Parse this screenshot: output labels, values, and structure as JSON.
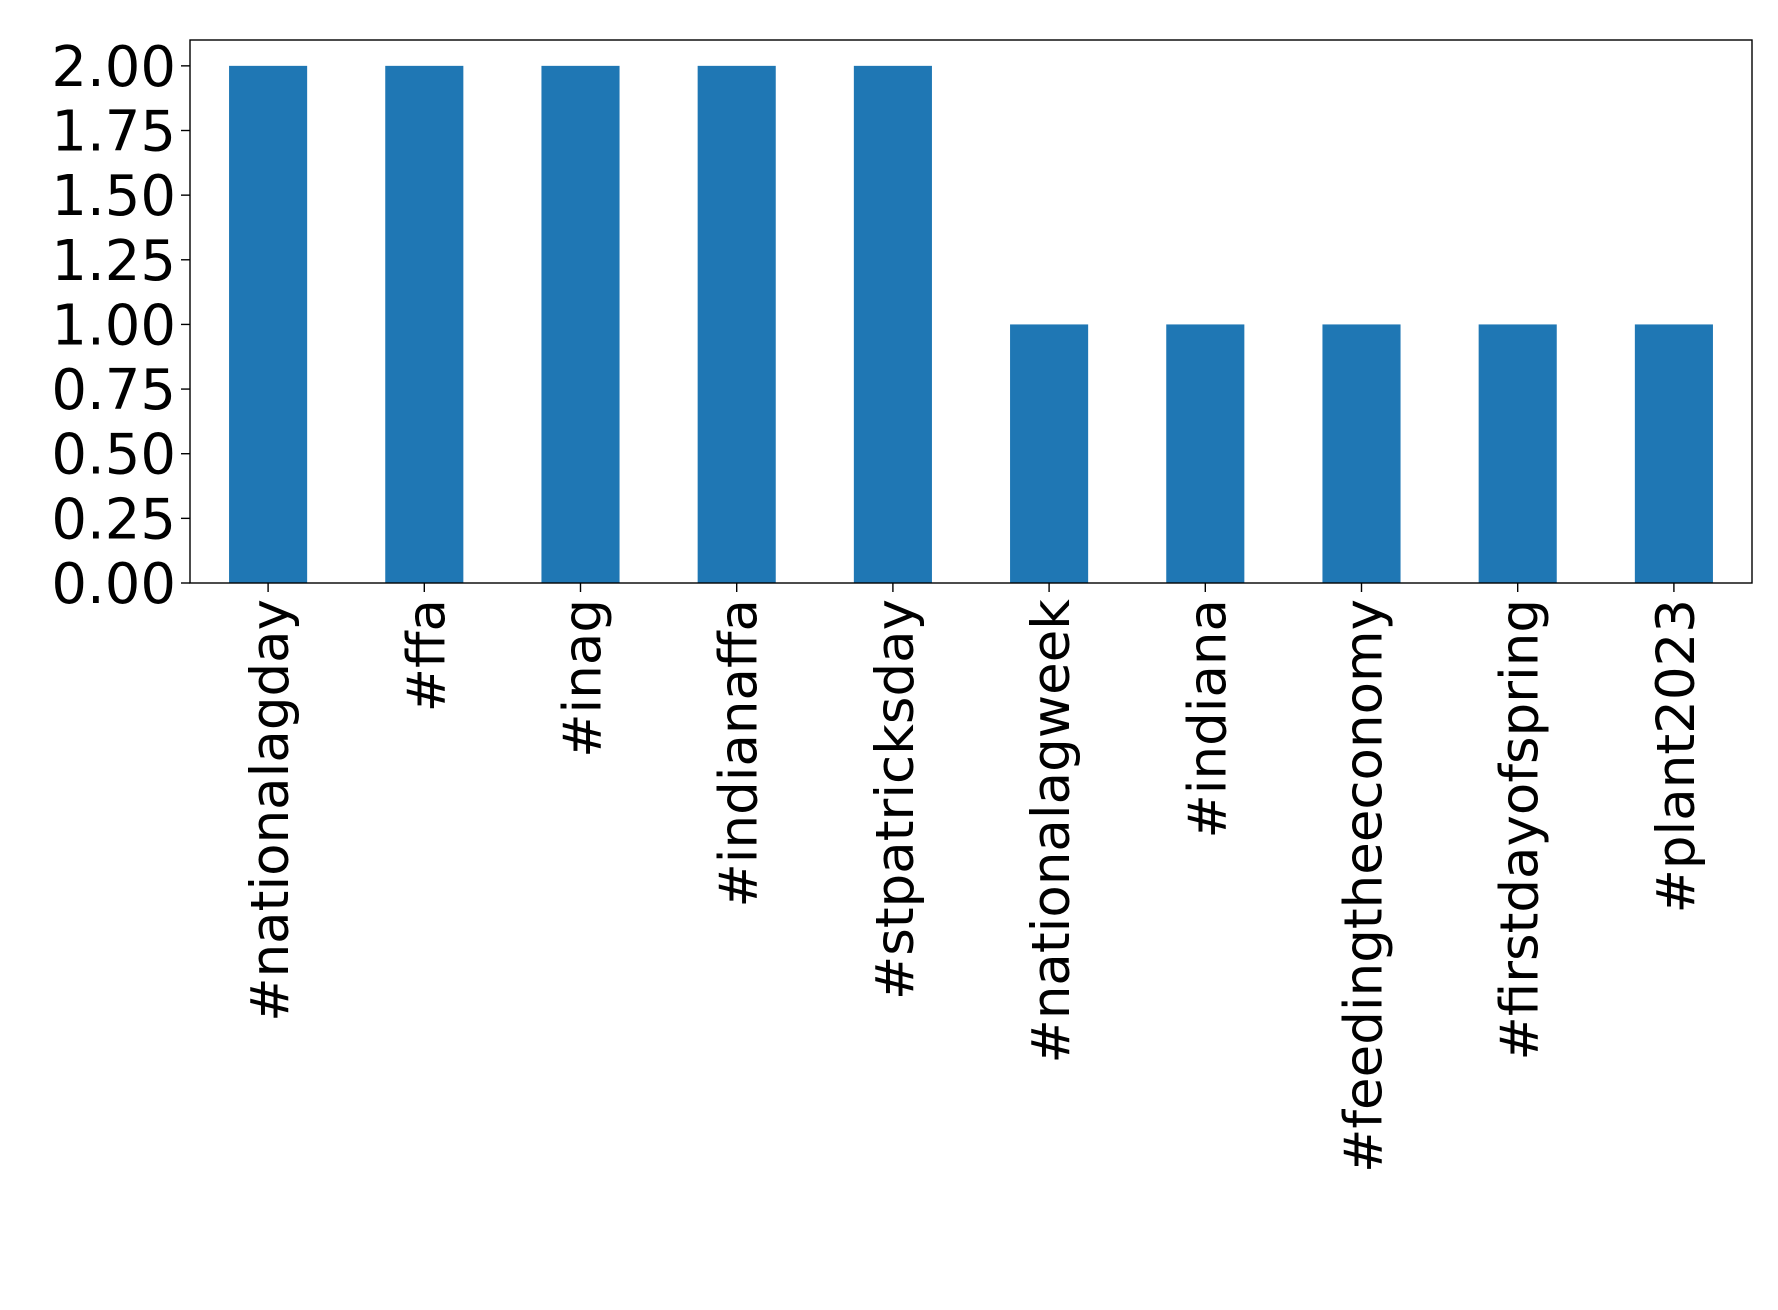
{
  "chart_data": {
    "type": "bar",
    "title": "",
    "xlabel": "",
    "ylabel": "",
    "categories": [
      "#nationalagday",
      "#ffa",
      "#inag",
      "#indianaffa",
      "#stpatricksday",
      "#nationalagweek",
      "#indiana",
      "#feedingtheeconomy",
      "#firstdayofspring",
      "#plant2023"
    ],
    "values": [
      2,
      2,
      2,
      2,
      2,
      1,
      1,
      1,
      1,
      1
    ],
    "ylim": [
      0,
      2.1
    ],
    "yticks": [
      "0.00",
      "0.25",
      "0.50",
      "0.75",
      "1.00",
      "1.25",
      "1.50",
      "1.75",
      "2.00"
    ],
    "bar_color": "#1f77b4",
    "grid": false,
    "legend": "none"
  }
}
